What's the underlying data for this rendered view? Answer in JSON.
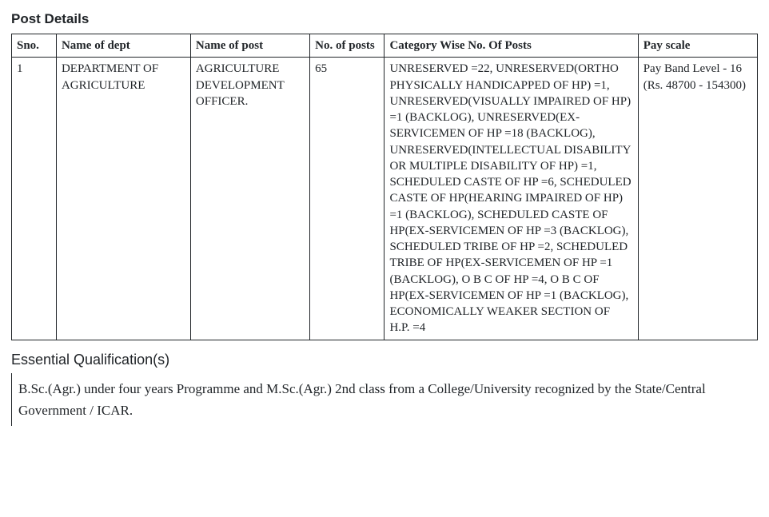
{
  "headings": {
    "post_details": "Post Details",
    "essential_qual": "Essential Qualification(s)"
  },
  "table": {
    "columns": {
      "sno": "Sno.",
      "dept": "Name of dept",
      "post": "Name of post",
      "num": "No. of posts",
      "category": "Category Wise No. Of Posts",
      "pay": "Pay scale"
    },
    "row": {
      "sno": "1",
      "dept": "DEPARTMENT OF AGRICULTURE",
      "post": "AGRICULTURE DEVELOPMENT OFFICER.",
      "num": "65",
      "category": "UNRESERVED =22, UNRESERVED(ORTHO PHYSICALLY HANDICAPPED OF HP) =1, UNRESERVED(VISUALLY IMPAIRED OF HP) =1 (BACKLOG), UNRESERVED(EX-SERVICEMEN OF HP  =18 (BACKLOG), UNRESERVED(INTELLECTUAL DISABILITY OR MULTIPLE DISABILITY OF HP) =1, SCHEDULED CASTE OF HP =6, SCHEDULED CASTE OF HP(HEARING IMPAIRED OF HP) =1 (BACKLOG), SCHEDULED CASTE OF HP(EX-SERVICEMEN OF HP =3 (BACKLOG), SCHEDULED TRIBE OF HP =2, SCHEDULED TRIBE OF HP(EX-SERVICEMEN OF HP =1 (BACKLOG), O B C OF HP =4, O B C OF HP(EX-SERVICEMEN OF HP =1 (BACKLOG), ECONOMICALLY WEAKER SECTION OF H.P. =4",
      "pay": "Pay Band Level - 16 (Rs. 48700 - 154300)"
    }
  },
  "qualification": "B.Sc.(Agr.) under four years Programme and M.Sc.(Agr.) 2nd class from a College/University recognized by the State/Central Government / ICAR."
}
